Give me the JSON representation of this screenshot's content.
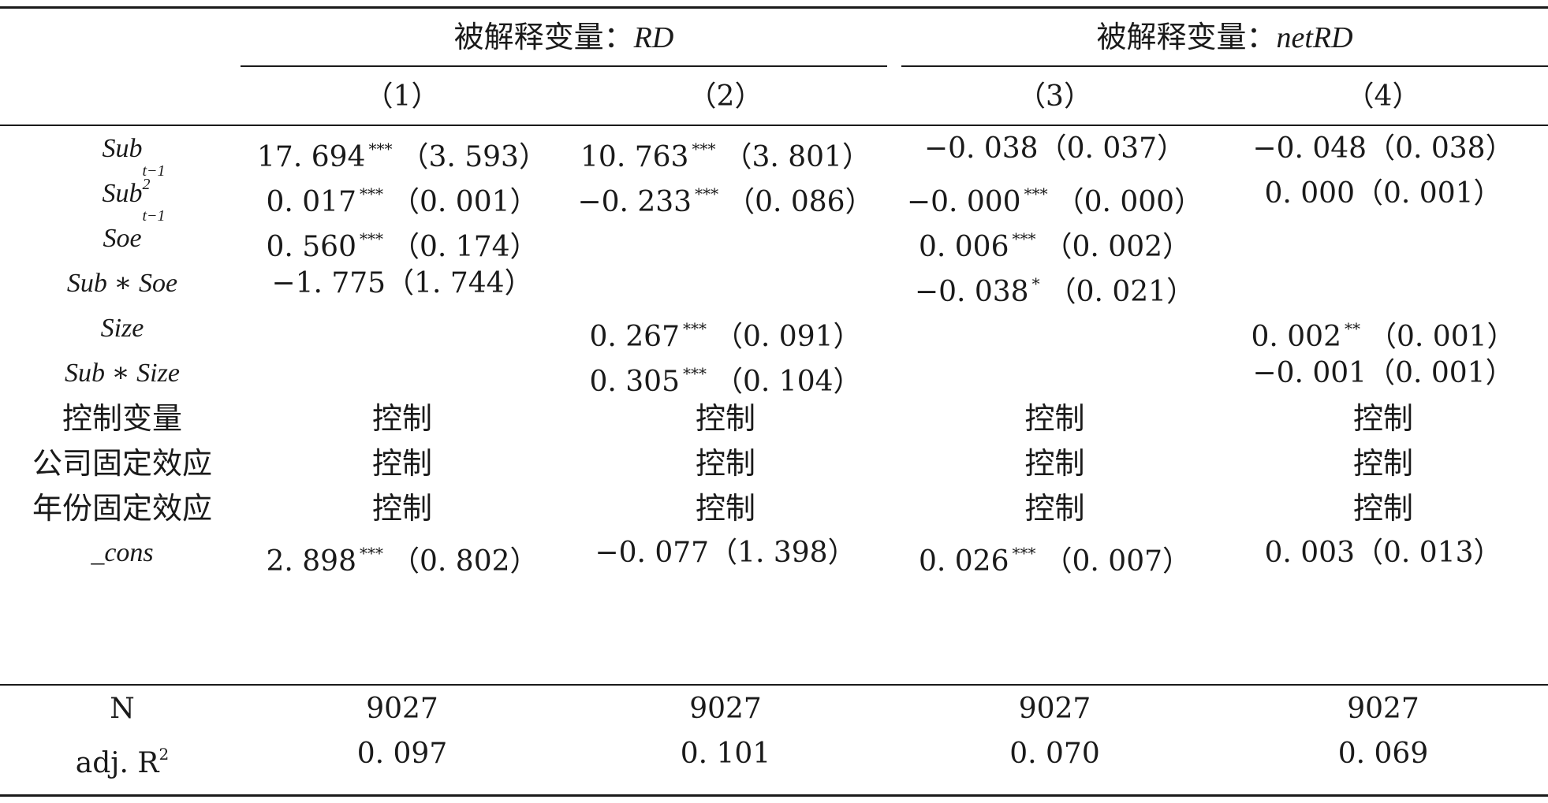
{
  "header": {
    "group1": {
      "prefix": "被解释变量：",
      "var": "RD"
    },
    "group2": {
      "prefix": "被解释变量：",
      "var": "netRD"
    },
    "cols": [
      "（1）",
      "（2）",
      "（3）",
      "（4）"
    ]
  },
  "rows": [
    {
      "label": "Sub",
      "label_sub": "t−1",
      "label_sup": "",
      "cells": [
        {
          "coef": "17. 694",
          "stars": "***",
          "se": "（3. 593）"
        },
        {
          "coef": "10. 763",
          "stars": "***",
          "se": "（3. 801）"
        },
        {
          "coef": "−0. 038",
          "stars": "",
          "se": "（0. 037）"
        },
        {
          "coef": "−0. 048",
          "stars": "",
          "se": "（0. 038）"
        }
      ]
    },
    {
      "label": "Sub",
      "label_sub": "t−1",
      "label_sup": "2",
      "cells": [
        {
          "coef": "0. 017",
          "stars": "***",
          "se": "（0. 001）"
        },
        {
          "coef": "−0. 233",
          "stars": "***",
          "se": "（0. 086）"
        },
        {
          "coef": "−0. 000",
          "stars": "***",
          "se": "（0. 000）"
        },
        {
          "coef": "0. 000",
          "stars": "",
          "se": "（0. 001）"
        }
      ]
    },
    {
      "label": "Soe",
      "label_sub": "",
      "label_sup": "",
      "cells": [
        {
          "coef": "0. 560",
          "stars": "***",
          "se": "（0. 174）"
        },
        {
          "coef": "",
          "stars": "",
          "se": ""
        },
        {
          "coef": "0. 006",
          "stars": "***",
          "se": "（0. 002）"
        },
        {
          "coef": "",
          "stars": "",
          "se": ""
        }
      ]
    },
    {
      "label": "Sub ∗ Soe",
      "label_sub": "",
      "label_sup": "",
      "cells": [
        {
          "coef": "−1. 775",
          "stars": "",
          "se": "（1. 744）"
        },
        {
          "coef": "",
          "stars": "",
          "se": ""
        },
        {
          "coef": "−0. 038",
          "stars": "*",
          "se": "（0. 021）"
        },
        {
          "coef": "",
          "stars": "",
          "se": ""
        }
      ]
    },
    {
      "label": "Size",
      "label_sub": "",
      "label_sup": "",
      "cells": [
        {
          "coef": "",
          "stars": "",
          "se": ""
        },
        {
          "coef": "0. 267",
          "stars": "***",
          "se": "（0. 091）"
        },
        {
          "coef": "",
          "stars": "",
          "se": ""
        },
        {
          "coef": "0. 002",
          "stars": "**",
          "se": "（0. 001）"
        }
      ]
    },
    {
      "label": "Sub ∗ Size",
      "label_sub": "",
      "label_sup": "",
      "cells": [
        {
          "coef": "",
          "stars": "",
          "se": ""
        },
        {
          "coef": "0. 305",
          "stars": "***",
          "se": "（0. 104）"
        },
        {
          "coef": "",
          "stars": "",
          "se": ""
        },
        {
          "coef": "−0. 001",
          "stars": "",
          "se": "（0. 001）"
        }
      ]
    },
    {
      "label": "控制变量",
      "cn": true,
      "label_sub": "",
      "label_sup": "",
      "cells": [
        {
          "coef": "控制",
          "stars": "",
          "se": ""
        },
        {
          "coef": "控制",
          "stars": "",
          "se": ""
        },
        {
          "coef": "控制",
          "stars": "",
          "se": ""
        },
        {
          "coef": "控制",
          "stars": "",
          "se": ""
        }
      ]
    },
    {
      "label": "公司固定效应",
      "cn": true,
      "label_sub": "",
      "label_sup": "",
      "cells": [
        {
          "coef": "控制",
          "stars": "",
          "se": ""
        },
        {
          "coef": "控制",
          "stars": "",
          "se": ""
        },
        {
          "coef": "控制",
          "stars": "",
          "se": ""
        },
        {
          "coef": "控制",
          "stars": "",
          "se": ""
        }
      ]
    },
    {
      "label": "年份固定效应",
      "cn": true,
      "label_sub": "",
      "label_sup": "",
      "cells": [
        {
          "coef": "控制",
          "stars": "",
          "se": ""
        },
        {
          "coef": "控制",
          "stars": "",
          "se": ""
        },
        {
          "coef": "控制",
          "stars": "",
          "se": ""
        },
        {
          "coef": "控制",
          "stars": "",
          "se": ""
        }
      ]
    },
    {
      "label": "_cons",
      "label_sub": "",
      "label_sup": "",
      "cells": [
        {
          "coef": "2. 898",
          "stars": "***",
          "se": "（0. 802）"
        },
        {
          "coef": "−0. 077",
          "stars": "",
          "se": "（1. 398）"
        },
        {
          "coef": "0. 026",
          "stars": "***",
          "se": "（0. 007）"
        },
        {
          "coef": "0. 003",
          "stars": "",
          "se": "（0. 013）"
        }
      ]
    }
  ],
  "footer": [
    {
      "label": "N",
      "label_sup": "",
      "values": [
        "9027",
        "9027",
        "9027",
        "9027"
      ]
    },
    {
      "label": "adj. R",
      "label_sup": "2",
      "values": [
        "0. 097",
        "0. 101",
        "0. 070",
        "0. 069"
      ]
    }
  ]
}
